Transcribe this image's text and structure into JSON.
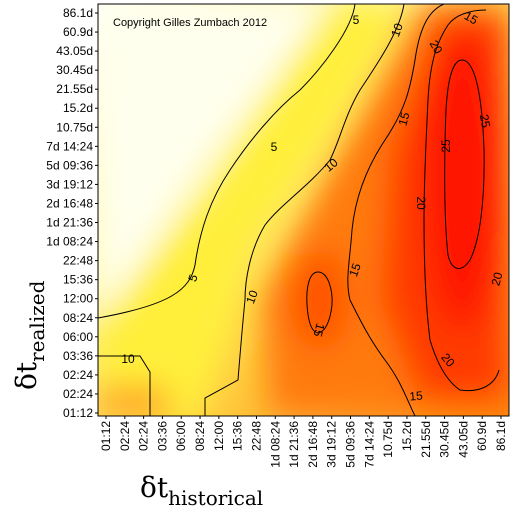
{
  "chart_data": {
    "type": "heatmap",
    "title": "",
    "copyright": "Copyright Gilles Zumbach 2012",
    "xlabel_main": "δt",
    "xlabel_sub": "historical",
    "ylabel_main": "δt",
    "ylabel_sub": "realized",
    "x_ticks": [
      "01:12",
      "02:24",
      "02:24",
      "03:36",
      "06:00",
      "08:24",
      "12:00",
      "15:36",
      "22:48",
      "1d 08:24",
      "1d 21:36",
      "2d 16:48",
      "3d 19:12",
      "5d 09:36",
      "7d 14:24",
      "10.75d",
      "15.2d",
      "21.55d",
      "30.45d",
      "43.05d",
      "60.9d",
      "86.1d"
    ],
    "y_ticks": [
      "86.1d",
      "60.9d",
      "43.05d",
      "30.45d",
      "21.55d",
      "15.2d",
      "10.75d",
      "7d 14:24",
      "5d 09:36",
      "3d 19:12",
      "2d 16:48",
      "1d 21:36",
      "1d 08:24",
      "22:48",
      "15:36",
      "12:00",
      "08:24",
      "06:00",
      "03:36",
      "02:24",
      "02:24",
      "01:12"
    ],
    "contour_levels": [
      5,
      10,
      15,
      20,
      25
    ],
    "contour_labels": [
      {
        "text": "5"
      },
      {
        "text": "5"
      },
      {
        "text": "5"
      },
      {
        "text": "10"
      },
      {
        "text": "10"
      },
      {
        "text": "10"
      },
      {
        "text": "10"
      },
      {
        "text": "15"
      },
      {
        "text": "15"
      },
      {
        "text": "15"
      },
      {
        "text": "15"
      },
      {
        "text": "15"
      },
      {
        "text": "20"
      },
      {
        "text": "20"
      },
      {
        "text": "20"
      },
      {
        "text": "20"
      },
      {
        "text": "25"
      },
      {
        "text": "25"
      }
    ],
    "colors": {
      "low": "#fffff2",
      "mid": "#ffff33",
      "high": "#ff1a00"
    }
  }
}
